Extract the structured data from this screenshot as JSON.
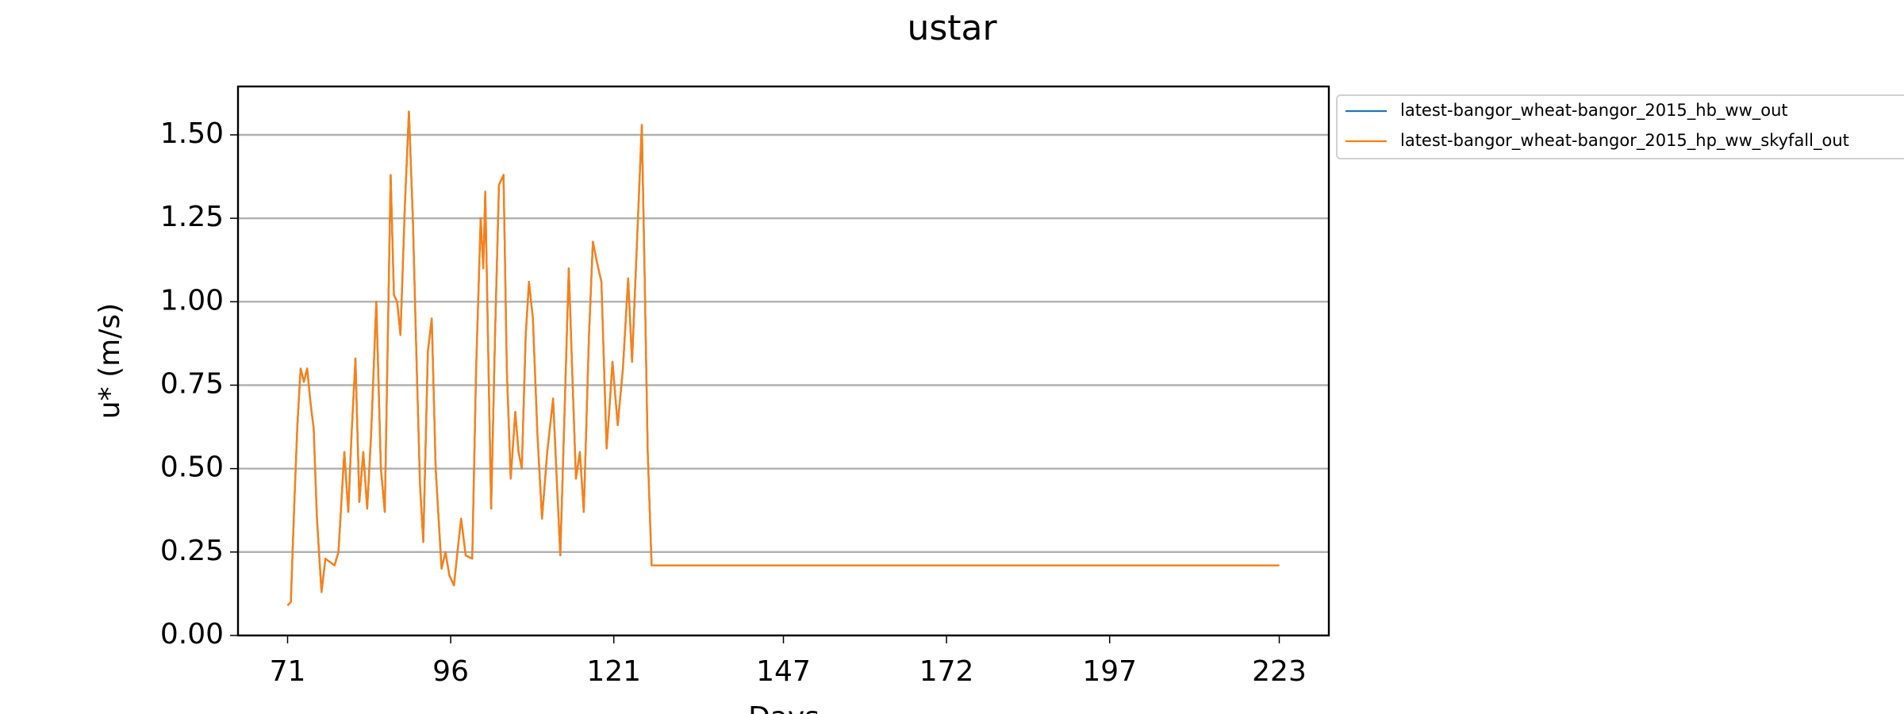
{
  "chart_data": {
    "type": "line",
    "title": "ustar",
    "xlabel": "Days",
    "ylabel": "u* (m/s)",
    "x": [
      71,
      71.5,
      72,
      72.5,
      73,
      73.5,
      74,
      74.5,
      75,
      75.5,
      76.2,
      76.8,
      77.5,
      78.2,
      78.8,
      79.7,
      80.3,
      80.8,
      81.4,
      82,
      82.6,
      83.2,
      83.8,
      84.6,
      85.3,
      85.9,
      86.8,
      87.3,
      87.8,
      88.3,
      89,
      89.6,
      90.2,
      90.8,
      91.3,
      91.8,
      92.5,
      93.1,
      93.7,
      94.6,
      95.2,
      95.8,
      96.5,
      97.2,
      97.6,
      98.3,
      99.3,
      99.9,
      100.6,
      101,
      101.3,
      102.2,
      102.8,
      103.4,
      104.1,
      104.6,
      105.2,
      105.9,
      106.4,
      106.9,
      107.5,
      108,
      108.6,
      109.3,
      110,
      110.8,
      111.7,
      112.3,
      112.8,
      113.5,
      114.1,
      114.7,
      115.2,
      115.8,
      116.4,
      117.2,
      117.8,
      118.4,
      119.1,
      119.9,
      120.4,
      120.8,
      121.6,
      122.4,
      123.2,
      123.8,
      124.6,
      125.3,
      125.8,
      126.2,
      126.8,
      223
    ],
    "series": [
      {
        "name": "latest-bangor_wheat-bangor_2015_hb_ww_out",
        "color": "#1f77b4",
        "values": [
          0.09,
          0.1,
          0.38,
          0.63,
          0.8,
          0.76,
          0.8,
          0.7,
          0.62,
          0.35,
          0.13,
          0.23,
          0.22,
          0.21,
          0.25,
          0.55,
          0.37,
          0.6,
          0.83,
          0.4,
          0.55,
          0.38,
          0.6,
          1.0,
          0.5,
          0.37,
          1.38,
          1.02,
          1.0,
          0.9,
          1.3,
          1.57,
          1.25,
          0.8,
          0.45,
          0.28,
          0.85,
          0.95,
          0.5,
          0.2,
          0.25,
          0.18,
          0.15,
          0.28,
          0.35,
          0.24,
          0.23,
          0.8,
          1.25,
          1.1,
          1.33,
          0.38,
          0.9,
          1.35,
          1.38,
          0.8,
          0.47,
          0.67,
          0.55,
          0.5,
          0.9,
          1.06,
          0.95,
          0.6,
          0.35,
          0.55,
          0.71,
          0.45,
          0.24,
          0.7,
          1.1,
          0.75,
          0.47,
          0.55,
          0.37,
          0.9,
          1.18,
          1.12,
          1.06,
          0.56,
          0.7,
          0.82,
          0.63,
          0.8,
          1.07,
          0.82,
          1.2,
          1.53,
          1.0,
          0.55,
          0.21,
          0.21
        ]
      },
      {
        "name": "latest-bangor_wheat-bangor_2015_hp_ww_skyfall_out",
        "color": "#ff7f0e",
        "values": [
          0.09,
          0.1,
          0.38,
          0.63,
          0.8,
          0.76,
          0.8,
          0.7,
          0.62,
          0.35,
          0.13,
          0.23,
          0.22,
          0.21,
          0.25,
          0.55,
          0.37,
          0.6,
          0.83,
          0.4,
          0.55,
          0.38,
          0.6,
          1.0,
          0.5,
          0.37,
          1.38,
          1.02,
          1.0,
          0.9,
          1.3,
          1.57,
          1.25,
          0.8,
          0.45,
          0.28,
          0.85,
          0.95,
          0.5,
          0.2,
          0.25,
          0.18,
          0.15,
          0.28,
          0.35,
          0.24,
          0.23,
          0.8,
          1.25,
          1.1,
          1.33,
          0.38,
          0.9,
          1.35,
          1.38,
          0.8,
          0.47,
          0.67,
          0.55,
          0.5,
          0.9,
          1.06,
          0.95,
          0.6,
          0.35,
          0.55,
          0.71,
          0.45,
          0.24,
          0.7,
          1.1,
          0.75,
          0.47,
          0.55,
          0.37,
          0.9,
          1.18,
          1.12,
          1.06,
          0.56,
          0.7,
          0.82,
          0.63,
          0.8,
          1.07,
          0.82,
          1.2,
          1.53,
          1.0,
          0.55,
          0.21,
          0.21
        ]
      }
    ],
    "xlim": [
      63.4,
      230.6
    ],
    "xticks": [
      71,
      96,
      121,
      147,
      172,
      197,
      223
    ],
    "ylim": [
      0,
      1.645
    ],
    "yticks": [
      {
        "value": 0,
        "label": "0.00"
      },
      {
        "value": 0.25,
        "label": "0.25"
      },
      {
        "value": 0.5,
        "label": "0.50"
      },
      {
        "value": 0.75,
        "label": "0.75"
      },
      {
        "value": 1,
        "label": "1.00"
      },
      {
        "value": 1.25,
        "label": "1.25"
      },
      {
        "value": 1.5,
        "label": "1.50"
      }
    ],
    "grid": "y"
  }
}
